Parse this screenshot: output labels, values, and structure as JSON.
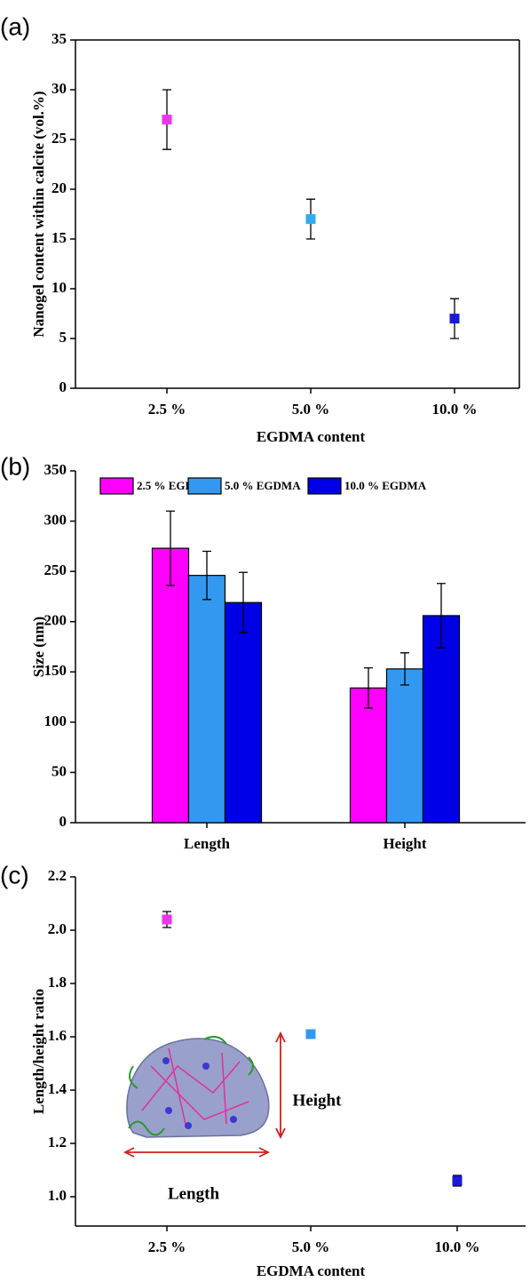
{
  "chart_data": [
    {
      "type": "scatter",
      "panel_label": "(a)",
      "x_label": "EGDMA content",
      "y_label": "Nanogel content within calcite (vol.%)",
      "categories": [
        "2.5 %",
        "5.0 %",
        "10.0 %"
      ],
      "values": [
        27,
        17,
        7
      ],
      "errors": [
        3,
        2,
        2
      ],
      "colors": [
        "#ee33ee",
        "#33aaee",
        "#1a1ad6"
      ],
      "ylim": [
        0,
        35
      ],
      "yticks": [
        0,
        5,
        10,
        15,
        20,
        25,
        30,
        35
      ]
    },
    {
      "type": "bar",
      "panel_label": "(b)",
      "y_label": "Size (nm)",
      "categories": [
        "Length",
        "Height"
      ],
      "series": [
        {
          "name": "2.5 % EGDMA",
          "color": "#ff00ff",
          "values": [
            273,
            134
          ],
          "errors": [
            37,
            20
          ]
        },
        {
          "name": "5.0 % EGDMA",
          "color": "#3399f0",
          "values": [
            246,
            153
          ],
          "errors": [
            24,
            16
          ]
        },
        {
          "name": "10.0 % EGDMA",
          "color": "#0000e6",
          "values": [
            219,
            206
          ],
          "errors": [
            30,
            32
          ]
        }
      ],
      "ylim": [
        0,
        350
      ],
      "yticks": [
        0,
        50,
        100,
        150,
        200,
        250,
        300,
        350
      ]
    },
    {
      "type": "scatter",
      "panel_label": "(c)",
      "x_label": "EGDMA content",
      "y_label": "Length/height ratio",
      "categories": [
        "2.5 %",
        "5.0 %",
        "10.0 %"
      ],
      "values": [
        2.04,
        1.61,
        1.06
      ],
      "errors": [
        0.03,
        0.01,
        0.02
      ],
      "colors": [
        "#ee33ee",
        "#3399f0",
        "#1a1ad6"
      ],
      "ylim": [
        0.89,
        2.2
      ],
      "yticks": [
        {
          "value": 1,
          "label": "1.0"
        },
        1.2,
        1.4,
        1.6,
        1.8,
        {
          "value": 2,
          "label": "2.0"
        },
        2.2
      ],
      "annotations": [
        "Height",
        "Length"
      ]
    }
  ]
}
